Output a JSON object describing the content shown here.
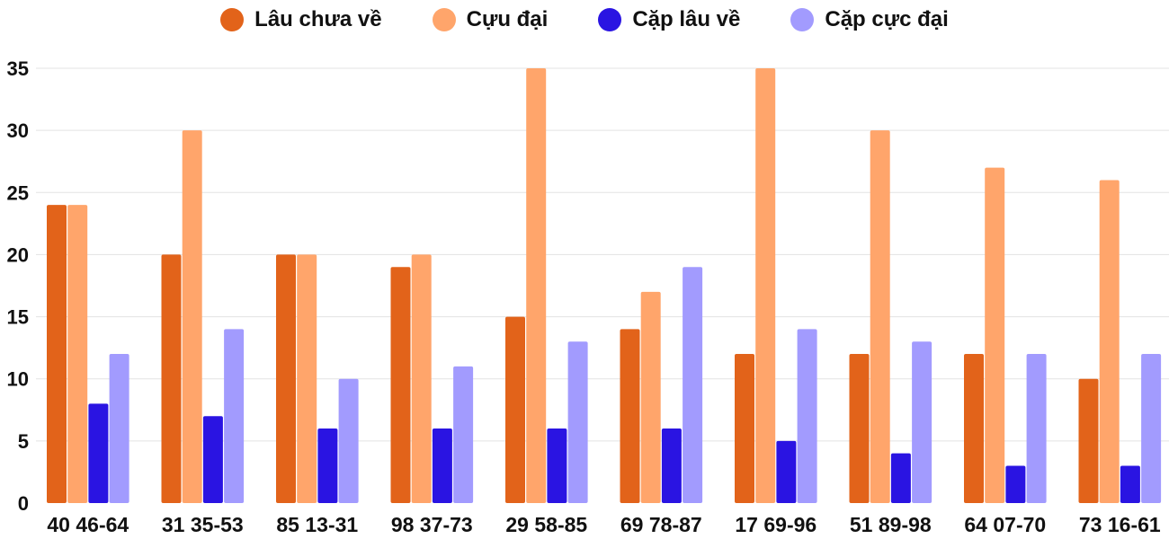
{
  "chart_data": {
    "type": "bar",
    "title": "",
    "xlabel": "",
    "ylabel": "",
    "ylim": [
      0,
      35
    ],
    "yticks": [
      0,
      5,
      10,
      15,
      20,
      25,
      30,
      35
    ],
    "grid": true,
    "legend_position": "top",
    "categories": [
      "40 46-64",
      "31 35-53",
      "85 13-31",
      "98 37-73",
      "29 58-85",
      "69 78-87",
      "17 69-96",
      "51 89-98",
      "64 07-70",
      "73 16-61"
    ],
    "series": [
      {
        "name": "Lâu chưa về",
        "color": "#E2631A",
        "values": [
          24,
          20,
          20,
          19,
          15,
          14,
          12,
          12,
          12,
          10
        ]
      },
      {
        "name": "Cựu đại",
        "color": "#FFA56B",
        "values": [
          24,
          30,
          20,
          20,
          35,
          17,
          35,
          30,
          27,
          26
        ]
      },
      {
        "name": "Cặp lâu về",
        "color": "#2A14E2",
        "values": [
          8,
          7,
          6,
          6,
          6,
          6,
          5,
          4,
          3,
          3
        ]
      },
      {
        "name": "Cặp cực đại",
        "color": "#A29BFE",
        "values": [
          12,
          14,
          10,
          11,
          13,
          19,
          14,
          13,
          12,
          12
        ]
      }
    ]
  }
}
